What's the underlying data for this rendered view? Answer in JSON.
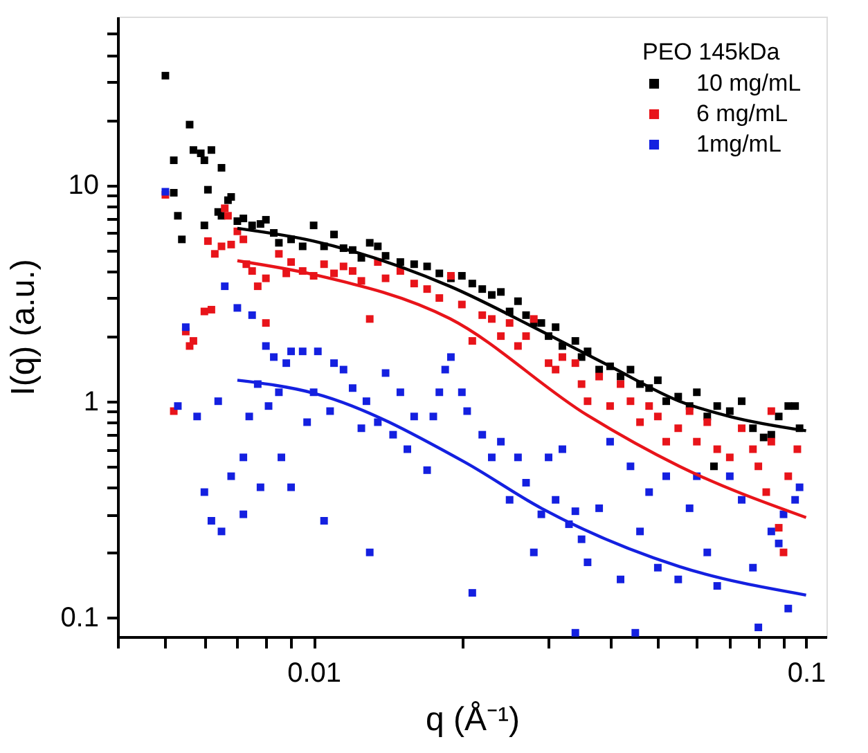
{
  "chart_data": {
    "type": "scatter",
    "xlabel": "q (Å⁻¹)",
    "ylabel": "I(q) (a.u.)",
    "legend_title": "PEO 145kDa",
    "legend": "top right",
    "marker": "square",
    "log": "xy",
    "grid": false,
    "xlim": [
      0.004,
      0.11
    ],
    "ylim": [
      0.0815,
      60
    ],
    "xticks": [
      {
        "value": 0.004,
        "label": null
      },
      {
        "value": 0.005,
        "label": null
      },
      {
        "value": 0.006,
        "label": null
      },
      {
        "value": 0.007,
        "label": null
      },
      {
        "value": 0.008,
        "label": null
      },
      {
        "value": 0.009,
        "label": null
      },
      0.01,
      {
        "value": 0.02,
        "label": null
      },
      {
        "value": 0.03,
        "label": null
      },
      {
        "value": 0.04,
        "label": null
      },
      {
        "value": 0.05,
        "label": null
      },
      {
        "value": 0.06,
        "label": null
      },
      {
        "value": 0.07,
        "label": null
      },
      {
        "value": 0.08,
        "label": null
      },
      {
        "value": 0.09,
        "label": null
      },
      0.1
    ],
    "yticks": [
      0.1,
      {
        "value": 0.2,
        "label": null
      },
      {
        "value": 0.3,
        "label": null
      },
      {
        "value": 0.4,
        "label": null
      },
      {
        "value": 0.5,
        "label": null
      },
      {
        "value": 0.6,
        "label": null
      },
      {
        "value": 0.7,
        "label": null
      },
      {
        "value": 0.8,
        "label": null
      },
      {
        "value": 0.9,
        "label": null
      },
      1,
      {
        "value": 2,
        "label": null
      },
      {
        "value": 3,
        "label": null
      },
      {
        "value": 4,
        "label": null
      },
      {
        "value": 5,
        "label": null
      },
      {
        "value": 6,
        "label": null
      },
      {
        "value": 7,
        "label": null
      },
      {
        "value": 8,
        "label": null
      },
      {
        "value": 9,
        "label": null
      },
      10,
      {
        "value": 20,
        "label": null
      },
      {
        "value": 30,
        "label": null
      },
      {
        "value": 40,
        "label": null
      },
      {
        "value": 50,
        "label": null
      }
    ],
    "series": [
      {
        "name": "10 mg/mL",
        "color": "#000000",
        "type": "scatter",
        "x": [
          0.005,
          0.0052,
          0.0052,
          0.0053,
          0.0054,
          0.0056,
          0.0057,
          0.0059,
          0.006,
          0.006,
          0.0061,
          0.0062,
          0.0064,
          0.0065,
          0.0065,
          0.0067,
          0.0068,
          0.007,
          0.0072,
          0.0075,
          0.0078,
          0.008,
          0.0083,
          0.0085,
          0.009,
          0.0095,
          0.01,
          0.0105,
          0.011,
          0.0115,
          0.012,
          0.0125,
          0.013,
          0.0135,
          0.014,
          0.015,
          0.016,
          0.017,
          0.018,
          0.019,
          0.02,
          0.021,
          0.022,
          0.023,
          0.024,
          0.025,
          0.026,
          0.027,
          0.028,
          0.029,
          0.03,
          0.031,
          0.032,
          0.034,
          0.035,
          0.036,
          0.038,
          0.04,
          0.042,
          0.044,
          0.046,
          0.048,
          0.05,
          0.052,
          0.055,
          0.058,
          0.06,
          0.063,
          0.065,
          0.066,
          0.07,
          0.074,
          0.078,
          0.082,
          0.085,
          0.088,
          0.092,
          0.095,
          0.097
        ],
        "values": [
          32,
          13,
          9.2,
          7.2,
          5.6,
          19,
          14.5,
          14,
          6.5,
          13,
          9.5,
          14.5,
          7.5,
          12,
          7.2,
          8.5,
          8.8,
          6.8,
          7,
          6.5,
          6.6,
          6.9,
          6,
          5.4,
          5.6,
          5.2,
          6.5,
          5.2,
          5.9,
          5.1,
          5,
          4.6,
          5.4,
          5.2,
          4.7,
          4.4,
          4.3,
          4.2,
          3.9,
          3.7,
          3.8,
          3.5,
          3.3,
          3.1,
          3.2,
          2.6,
          2.9,
          2.5,
          2.3,
          2.3,
          2,
          2.2,
          1.8,
          1.9,
          1.6,
          1.7,
          1.4,
          1.45,
          1.3,
          1.4,
          1.2,
          1.15,
          1.25,
          1,
          1.05,
          0.95,
          1.1,
          0.85,
          0.5,
          0.95,
          0.9,
          1,
          0.75,
          0.68,
          0.7,
          0.85,
          0.95,
          0.95,
          0.75
        ]
      },
      {
        "name": "6 mg/mL",
        "color": "#e8141a",
        "type": "scatter",
        "x": [
          0.005,
          0.0052,
          0.0055,
          0.0056,
          0.0057,
          0.006,
          0.0062,
          0.0061,
          0.0063,
          0.0065,
          0.0066,
          0.0067,
          0.0068,
          0.007,
          0.0072,
          0.0073,
          0.0075,
          0.0077,
          0.008,
          0.008,
          0.0085,
          0.0088,
          0.009,
          0.0095,
          0.01,
          0.0105,
          0.011,
          0.0115,
          0.012,
          0.0125,
          0.013,
          0.0135,
          0.014,
          0.015,
          0.016,
          0.017,
          0.018,
          0.019,
          0.02,
          0.021,
          0.022,
          0.023,
          0.024,
          0.025,
          0.026,
          0.027,
          0.028,
          0.03,
          0.031,
          0.032,
          0.034,
          0.035,
          0.036,
          0.038,
          0.04,
          0.042,
          0.044,
          0.046,
          0.048,
          0.05,
          0.052,
          0.055,
          0.058,
          0.06,
          0.063,
          0.066,
          0.07,
          0.074,
          0.078,
          0.08,
          0.083,
          0.085,
          0.088,
          0.09,
          0.092,
          0.096,
          0.085
        ],
        "values": [
          9,
          0.9,
          2.1,
          1.8,
          1.9,
          2.6,
          2.65,
          5.5,
          4.8,
          5.2,
          7.8,
          7.2,
          5.3,
          6.1,
          5.6,
          4.3,
          4,
          3.4,
          3.7,
          2.3,
          4.8,
          3.9,
          4.4,
          4,
          3.8,
          4.3,
          3.9,
          4.2,
          4,
          3.6,
          2.4,
          4.4,
          3.7,
          4,
          3.5,
          3.3,
          3,
          3.8,
          2.8,
          1.9,
          2.5,
          2.4,
          2,
          2.3,
          1.8,
          2,
          2.4,
          1.5,
          1.4,
          1.6,
          1.5,
          1.2,
          1,
          1.3,
          0.95,
          1.2,
          1,
          0.8,
          0.95,
          0.85,
          0.65,
          0.75,
          0.9,
          0.65,
          0.8,
          0.6,
          0.55,
          0.75,
          0.6,
          0.5,
          0.38,
          0.65,
          0.26,
          0.2,
          0.45,
          0.6,
          0.9
        ]
      },
      {
        "name": "1mg/mL",
        "color": "#1420e0",
        "type": "scatter",
        "x": [
          0.005,
          0.0053,
          0.0055,
          0.0058,
          0.006,
          0.0062,
          0.0064,
          0.0066,
          0.0065,
          0.0068,
          0.007,
          0.0072,
          0.0072,
          0.0074,
          0.0075,
          0.0077,
          0.0078,
          0.008,
          0.0081,
          0.0083,
          0.0085,
          0.0086,
          0.0088,
          0.009,
          0.009,
          0.0095,
          0.0097,
          0.01,
          0.0102,
          0.0105,
          0.0108,
          0.011,
          0.0115,
          0.012,
          0.0125,
          0.013,
          0.0128,
          0.0135,
          0.014,
          0.0145,
          0.015,
          0.0155,
          0.016,
          0.017,
          0.0175,
          0.018,
          0.0185,
          0.019,
          0.02,
          0.021,
          0.0205,
          0.022,
          0.023,
          0.024,
          0.025,
          0.026,
          0.027,
          0.028,
          0.029,
          0.03,
          0.031,
          0.032,
          0.033,
          0.034,
          0.035,
          0.036,
          0.038,
          0.04,
          0.042,
          0.044,
          0.046,
          0.048,
          0.05,
          0.052,
          0.055,
          0.058,
          0.06,
          0.063,
          0.066,
          0.07,
          0.074,
          0.078,
          0.08,
          0.085,
          0.088,
          0.09,
          0.092,
          0.095,
          0.097,
          0.034,
          0.045
        ],
        "values": [
          9.3,
          0.95,
          2.2,
          0.85,
          0.38,
          0.28,
          1,
          3.4,
          0.25,
          0.45,
          2.7,
          0.55,
          0.3,
          0.85,
          2.5,
          1.2,
          0.4,
          1.8,
          0.95,
          1.6,
          1.1,
          0.55,
          1.5,
          0.4,
          1.7,
          1.7,
          0.8,
          1.1,
          1.7,
          0.28,
          0.9,
          1.5,
          1.4,
          1.15,
          0.75,
          0.2,
          1,
          0.8,
          1.35,
          0.7,
          1.1,
          0.6,
          0.85,
          0.48,
          0.85,
          1.1,
          1.4,
          1.6,
          1.1,
          0.13,
          0.9,
          0.7,
          0.55,
          0.65,
          0.35,
          0.55,
          0.42,
          0.2,
          0.3,
          0.55,
          0.35,
          0.6,
          0.27,
          0.31,
          0.23,
          0.18,
          0.32,
          0.65,
          0.15,
          0.5,
          0.25,
          0.38,
          0.17,
          0.45,
          0.15,
          0.32,
          0.45,
          0.2,
          0.14,
          0.45,
          0.35,
          0.17,
          0.09,
          0.25,
          0.22,
          0.3,
          0.11,
          0.35,
          0.4,
          0.085,
          0.085
        ]
      },
      {
        "color": "#000000",
        "type": "line",
        "marker": "none",
        "x": [
          0.007,
          0.01,
          0.0189,
          0.0291,
          0.04,
          0.0553,
          0.07,
          0.1
        ],
        "values": [
          6.3,
          5.5,
          3.4,
          2.1,
          1.45,
          1.0,
          0.85,
          0.73
        ]
      },
      {
        "color": "#e8141a",
        "type": "line",
        "marker": "none",
        "x": [
          0.007,
          0.01,
          0.0189,
          0.036,
          0.0553,
          0.1
        ],
        "values": [
          4.46,
          3.85,
          2.41,
          0.86,
          0.5,
          0.29
        ]
      },
      {
        "color": "#1420e0",
        "type": "line",
        "marker": "none",
        "x": [
          0.007,
          0.01,
          0.0202,
          0.029,
          0.0553,
          0.1
        ],
        "values": [
          1.25,
          1.09,
          0.525,
          0.32,
          0.172,
          0.127
        ]
      }
    ]
  }
}
